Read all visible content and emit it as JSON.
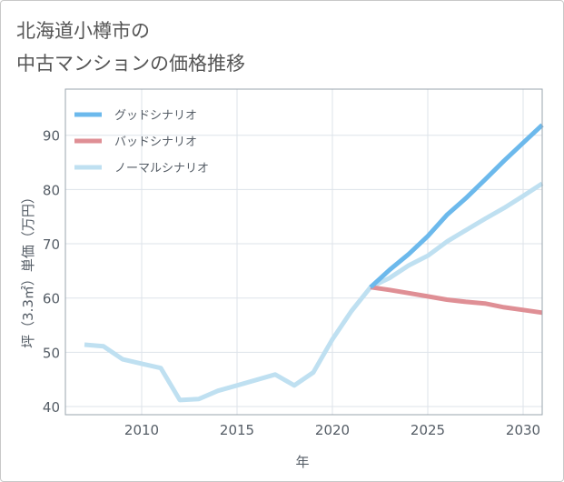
{
  "title": "北海道小樽市の\n中古マンションの価格推移",
  "chart_data": {
    "type": "line",
    "title": "北海道小樽市の中古マンションの価格推移",
    "xlabel": "年",
    "ylabel": "坪（3.3㎡）単価（万円）",
    "xlim": [
      2006,
      2031
    ],
    "ylim": [
      38.5,
      98.5
    ],
    "xticks": [
      2010,
      2015,
      2020,
      2025,
      2030
    ],
    "yticks": [
      40,
      50,
      60,
      70,
      80,
      90
    ],
    "legend_position": "top-left",
    "series": [
      {
        "name": "グッドシナリオ",
        "color": "#6cb9ec",
        "x": [
          2022,
          2023,
          2024,
          2025,
          2026,
          2027,
          2028,
          2029,
          2030,
          2031
        ],
        "y": [
          62,
          65.2,
          68.1,
          71.4,
          75.3,
          78.4,
          81.8,
          85.3,
          88.6,
          91.9
        ]
      },
      {
        "name": "バッドシナリオ",
        "color": "#df8f95",
        "x": [
          2022,
          2023,
          2024,
          2025,
          2026,
          2027,
          2028,
          2029,
          2030,
          2031
        ],
        "y": [
          62,
          61.5,
          60.9,
          60.3,
          59.7,
          59.3,
          59,
          58.3,
          57.8,
          57.3
        ]
      },
      {
        "name": "ノーマルシナリオ",
        "color": "#bfe0f1",
        "x": [
          2007,
          2008,
          2009,
          2010,
          2011,
          2012,
          2013,
          2014,
          2015,
          2016,
          2017,
          2018,
          2019,
          2020,
          2021,
          2022,
          2023,
          2024,
          2025,
          2026,
          2027,
          2028,
          2029,
          2030,
          2031
        ],
        "y": [
          51.4,
          51.1,
          48.7,
          47.9,
          47.1,
          41.2,
          41.4,
          42.9,
          43.9,
          44.9,
          45.9,
          43.9,
          46.3,
          52.4,
          57.6,
          62,
          63.7,
          66,
          67.8,
          70.4,
          72.5,
          74.6,
          76.6,
          78.8,
          81.1
        ]
      }
    ]
  }
}
